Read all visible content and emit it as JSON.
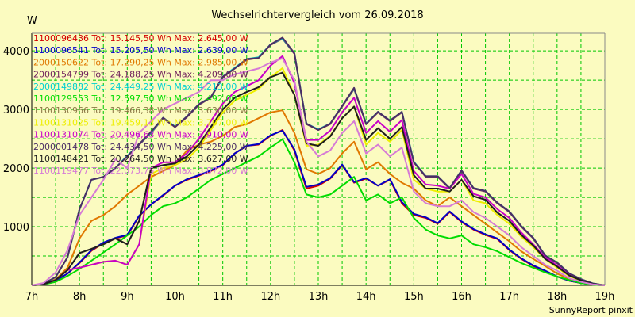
{
  "chart_data": {
    "type": "line",
    "title": "Wechselrichtervergleich vom 26.09.2018",
    "ylabel": "W",
    "xlabel": "",
    "footer": "SunnyReport pinxit",
    "xlim": [
      7,
      19
    ],
    "ylim": [
      0,
      4300
    ],
    "yticks": [
      1000,
      2000,
      3000,
      4000
    ],
    "xticks": [
      {
        "value": 7,
        "label": "7h"
      },
      {
        "value": 8,
        "label": "8h"
      },
      {
        "value": 9,
        "label": "9h"
      },
      {
        "value": 10,
        "label": "10h"
      },
      {
        "value": 11,
        "label": "11h"
      },
      {
        "value": 12,
        "label": "12h"
      },
      {
        "value": 13,
        "label": "13h"
      },
      {
        "value": 14,
        "label": "14h"
      },
      {
        "value": 15,
        "label": "15h"
      },
      {
        "value": 16,
        "label": "16h"
      },
      {
        "value": 17,
        "label": "17h"
      },
      {
        "value": 18,
        "label": "18h"
      },
      {
        "value": 19,
        "label": "19h"
      }
    ],
    "grid": true,
    "legend_position": "top-left",
    "x": [
      7.0,
      7.25,
      7.5,
      7.75,
      8.0,
      8.25,
      8.5,
      8.75,
      9.0,
      9.25,
      9.5,
      9.75,
      10.0,
      10.25,
      10.5,
      10.75,
      11.0,
      11.25,
      11.5,
      11.75,
      12.0,
      12.25,
      12.5,
      12.75,
      13.0,
      13.25,
      13.5,
      13.75,
      14.0,
      14.25,
      14.5,
      14.75,
      15.0,
      15.25,
      15.5,
      15.75,
      16.0,
      16.25,
      16.5,
      16.75,
      17.0,
      17.25,
      17.5,
      17.75,
      18.0,
      18.25,
      18.5,
      18.75,
      19.0
    ],
    "series": [
      {
        "name": "1100096436 Tot: 15.145,50 Wh Max: 2.645,00 W",
        "color": "#d40000",
        "values": [
          0,
          20,
          80,
          200,
          380,
          590,
          720,
          800,
          850,
          1180,
          1380,
          1530,
          1700,
          1800,
          1870,
          1950,
          2050,
          2250,
          2380,
          2400,
          2550,
          2650,
          2300,
          1650,
          1700,
          1820,
          2050,
          1750,
          1820,
          1700,
          1800,
          1400,
          1200,
          1150,
          1050,
          1250,
          1080,
          950,
          860,
          790,
          600,
          450,
          330,
          240,
          150,
          80,
          40,
          10,
          0
        ]
      },
      {
        "name": "1100096541 Tot: 15.205,50 Wh Max: 2.639,00 W",
        "color": "#0000c8",
        "values": [
          0,
          20,
          80,
          200,
          390,
          600,
          730,
          810,
          860,
          1190,
          1380,
          1540,
          1700,
          1810,
          1880,
          1960,
          2060,
          2250,
          2380,
          2410,
          2560,
          2639,
          2320,
          1680,
          1720,
          1830,
          2060,
          1760,
          1830,
          1700,
          1810,
          1420,
          1220,
          1160,
          1060,
          1260,
          1090,
          960,
          870,
          800,
          610,
          460,
          340,
          250,
          150,
          80,
          40,
          10,
          0
        ]
      },
      {
        "name": "2000150622 Tot: 17.290,25 Wh Max: 2.985,00 W",
        "color": "#e07800",
        "values": [
          0,
          25,
          100,
          300,
          800,
          1100,
          1200,
          1350,
          1550,
          1700,
          1850,
          1950,
          2050,
          2300,
          2400,
          2450,
          2550,
          2700,
          2750,
          2850,
          2950,
          2985,
          2600,
          1980,
          1900,
          2000,
          2250,
          2450,
          1980,
          2100,
          1900,
          1750,
          1650,
          1450,
          1350,
          1500,
          1350,
          1200,
          1050,
          900,
          750,
          580,
          450,
          330,
          200,
          110,
          50,
          15,
          0
        ]
      },
      {
        "name": "2000154799 Tot: 24.188,25 Wh Max: 4.209,00 W",
        "color": "#6e1e5a",
        "values": [
          0,
          30,
          140,
          480,
          1300,
          1800,
          1850,
          2000,
          2200,
          2400,
          2600,
          2850,
          2700,
          2870,
          3080,
          3200,
          3550,
          3700,
          3850,
          3880,
          4100,
          4209,
          3950,
          2750,
          2650,
          2750,
          3050,
          3350,
          2750,
          2950,
          2800,
          2950,
          2100,
          1850,
          1850,
          1650,
          1950,
          1650,
          1600,
          1400,
          1250,
          1000,
          800,
          500,
          380,
          200,
          100,
          30,
          0
        ]
      },
      {
        "name": "2000149882 Tot: 24.449,25 Wh Max: 4.213,00 W",
        "color": "#00d0d0",
        "values": [
          0,
          30,
          140,
          480,
          1300,
          1800,
          1850,
          2000,
          2210,
          2410,
          2610,
          2860,
          2710,
          2880,
          3090,
          3210,
          3560,
          3710,
          3860,
          3890,
          4110,
          4213,
          3960,
          2760,
          2660,
          2760,
          3060,
          3360,
          2760,
          2960,
          2810,
          2960,
          2110,
          1860,
          1860,
          1660,
          1960,
          1660,
          1610,
          1410,
          1260,
          1010,
          810,
          510,
          390,
          205,
          105,
          32,
          0
        ]
      },
      {
        "name": "1100129553 Tot: 12.597,50 Wh Max: 2.492,00 W",
        "color": "#00dc00",
        "values": [
          0,
          15,
          60,
          160,
          280,
          420,
          560,
          700,
          850,
          1000,
          1200,
          1350,
          1400,
          1500,
          1650,
          1800,
          1900,
          2000,
          2100,
          2200,
          2350,
          2492,
          2100,
          1550,
          1500,
          1550,
          1700,
          1850,
          1450,
          1550,
          1400,
          1500,
          1150,
          950,
          850,
          800,
          850,
          700,
          650,
          580,
          480,
          380,
          300,
          220,
          150,
          90,
          40,
          10,
          0
        ]
      },
      {
        "name": "1100130966 Tot: 19.466,38 Wh Max: 3.630,00 W",
        "color": "#8c7846",
        "values": [
          0,
          20,
          90,
          260,
          550,
          620,
          700,
          800,
          700,
          1100,
          2000,
          2050,
          2080,
          2200,
          2400,
          2700,
          3000,
          3200,
          3300,
          3380,
          3560,
          3630,
          3250,
          2420,
          2380,
          2540,
          2850,
          3050,
          2480,
          2680,
          2500,
          2700,
          1880,
          1650,
          1650,
          1600,
          1800,
          1520,
          1460,
          1240,
          1100,
          860,
          680,
          450,
          320,
          170,
          85,
          25,
          0
        ]
      },
      {
        "name": "1100131025 Tot: 19.459,13 Wh Max: 3.707,00 W",
        "color": "#eeee00",
        "values": [
          0,
          20,
          90,
          260,
          300,
          350,
          400,
          420,
          350,
          700,
          1900,
          2000,
          2050,
          2150,
          2350,
          2650,
          2950,
          3150,
          3250,
          3350,
          3550,
          3707,
          3250,
          2380,
          2400,
          2550,
          2850,
          3050,
          2400,
          2600,
          2450,
          2650,
          1800,
          1650,
          1600,
          1600,
          1800,
          1450,
          1400,
          1200,
          1050,
          830,
          650,
          450,
          300,
          160,
          80,
          22,
          0
        ]
      },
      {
        "name": "1100131074 Tot: 20.496,63 Wh Max: 3.910,00 W",
        "color": "#c800c8",
        "values": [
          0,
          20,
          90,
          260,
          300,
          350,
          400,
          420,
          350,
          700,
          2000,
          2100,
          2100,
          2250,
          2500,
          2800,
          3100,
          3300,
          3400,
          3500,
          3750,
          3910,
          3450,
          2480,
          2480,
          2640,
          2950,
          3200,
          2600,
          2800,
          2620,
          2820,
          1950,
          1720,
          1700,
          1650,
          1900,
          1560,
          1500,
          1300,
          1150,
          900,
          700,
          480,
          340,
          180,
          90,
          25,
          0
        ]
      },
      {
        "name": "2000001478 Tot: 24.434,50 Wh Max: 4.225,00 W",
        "color": "#4b2d64",
        "values": [
          0,
          30,
          140,
          480,
          1300,
          1800,
          1850,
          2000,
          2200,
          2410,
          2620,
          2860,
          2700,
          2880,
          3090,
          3210,
          3560,
          3700,
          3860,
          3880,
          4110,
          4225,
          3960,
          2760,
          2650,
          2760,
          3060,
          3370,
          2750,
          2960,
          2810,
          2960,
          2100,
          1860,
          1860,
          1660,
          1960,
          1660,
          1610,
          1410,
          1260,
          1010,
          810,
          510,
          390,
          205,
          105,
          32,
          0
        ]
      },
      {
        "name": "1100148421 Tot: 20.264,50 Wh Max: 3.627,00 W",
        "color": "#1e1e1e",
        "values": [
          0,
          20,
          90,
          260,
          550,
          620,
          700,
          800,
          700,
          1100,
          2000,
          2050,
          2080,
          2200,
          2400,
          2700,
          3000,
          3200,
          3300,
          3380,
          3550,
          3627,
          3250,
          2420,
          2380,
          2540,
          2850,
          3050,
          2480,
          2680,
          2500,
          2700,
          1880,
          1650,
          1650,
          1600,
          1800,
          1520,
          1460,
          1240,
          1100,
          860,
          680,
          450,
          320,
          170,
          85,
          25,
          0
        ]
      },
      {
        "name": "1100119477 Tot: 22.073,75 Wh Max: 3.872,00 W",
        "color": "#d67ad6",
        "values": [
          0,
          40,
          220,
          600,
          1200,
          1500,
          1800,
          2150,
          2000,
          2600,
          2800,
          3000,
          3100,
          3200,
          3300,
          3500,
          3500,
          3600,
          3650,
          3700,
          3800,
          3872,
          3500,
          2450,
          2200,
          2300,
          2600,
          2800,
          2250,
          2400,
          2200,
          2350,
          1600,
          1400,
          1350,
          1350,
          1450,
          1250,
          1150,
          1000,
          850,
          650,
          500,
          350,
          250,
          120,
          60,
          18,
          0
        ]
      }
    ]
  }
}
